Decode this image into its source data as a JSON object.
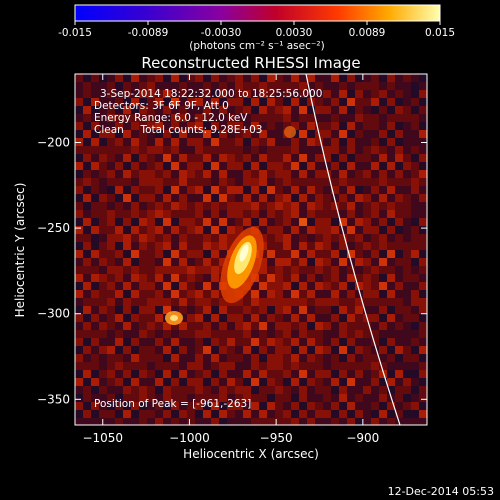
{
  "colorbar": {
    "ticks": [
      "-0.015",
      "-0.0089",
      "-0.0030",
      "0.0030",
      "0.0089",
      "0.015"
    ],
    "unit_label": "(photons cm⁻² s⁻¹ asec⁻²)"
  },
  "plot": {
    "title": "Reconstructed RHESSI Image",
    "xlabel": "Heliocentric X (arcsec)",
    "ylabel": "Heliocentric Y (arcsec)",
    "xticks": [
      "-1050",
      "-1000",
      "-950",
      "-900"
    ],
    "yticks": [
      "-200",
      "-250",
      "-300",
      "-350"
    ],
    "xlim": [
      -1066,
      -863
    ],
    "ylim": [
      -365,
      -160
    ],
    "info_lines": [
      "3-Sep-2014 18:22:32.000 to 18:25:56.000",
      "Detectors: 3F 6F 9F, Att 0",
      "Energy Range: 6.0 - 12.0 keV",
      "Clean     Total counts: 9.28E+03"
    ],
    "peak_label": "Position of Peak = [-961,-263]",
    "peak": [
      -961,
      -263
    ]
  },
  "footer": {
    "date": "12-Dec-2014 05:53"
  },
  "colors": {
    "background": "#000000",
    "limb_line": "#ffffff",
    "text": "#ffffff"
  }
}
